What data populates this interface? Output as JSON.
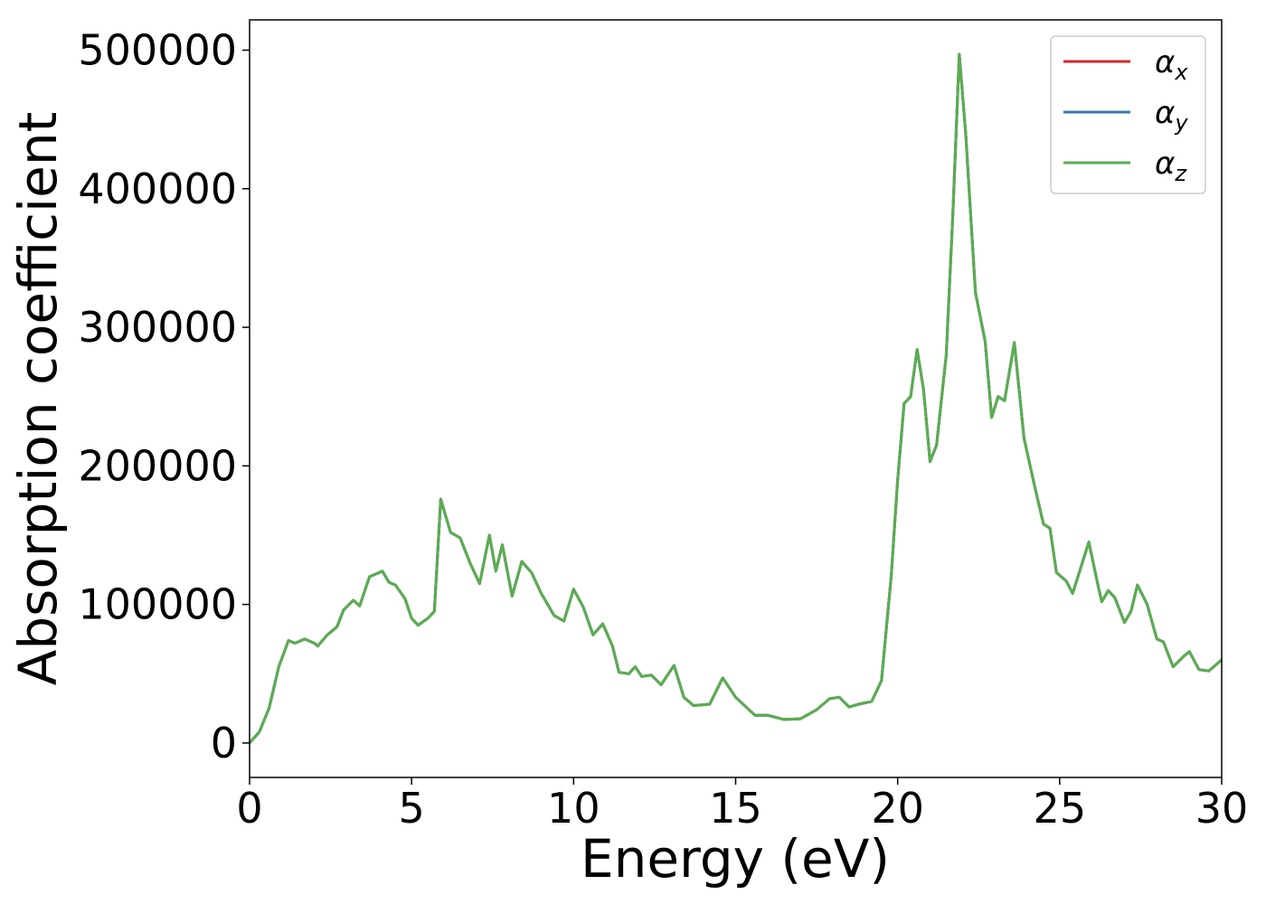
{
  "chart_data": {
    "type": "line",
    "xlabel": "Energy (eV)",
    "ylabel": "Absorption coefficient",
    "x": [
      0,
      0.3,
      0.6,
      0.9,
      1.2,
      1.4,
      1.7,
      2.0,
      2.1,
      2.4,
      2.7,
      2.9,
      3.2,
      3.4,
      3.7,
      3.9,
      4.1,
      4.3,
      4.5,
      4.8,
      5.0,
      5.2,
      5.5,
      5.7,
      5.9,
      6.2,
      6.5,
      6.8,
      7.1,
      7.4,
      7.6,
      7.8,
      8.1,
      8.4,
      8.7,
      9.0,
      9.4,
      9.7,
      10.0,
      10.3,
      10.6,
      10.9,
      11.2,
      11.4,
      11.7,
      11.9,
      12.1,
      12.4,
      12.7,
      13.1,
      13.4,
      13.7,
      14.2,
      14.6,
      15.0,
      15.6,
      16.0,
      16.5,
      17.0,
      17.5,
      17.9,
      18.2,
      18.5,
      18.8,
      19.2,
      19.5,
      19.8,
      20.0,
      20.2,
      20.4,
      20.6,
      20.8,
      21.0,
      21.2,
      21.5,
      21.7,
      21.9,
      22.1,
      22.4,
      22.7,
      22.9,
      23.1,
      23.3,
      23.6,
      23.9,
      24.2,
      24.5,
      24.7,
      24.9,
      25.2,
      25.4,
      25.9,
      26.2,
      26.3,
      26.5,
      26.7,
      27.0,
      27.2,
      27.4,
      27.7,
      28.0,
      28.2,
      28.5,
      28.8,
      29.0,
      29.3,
      29.6,
      30.0
    ],
    "series": [
      {
        "name": "αx",
        "color": "#d62728",
        "values": [
          0,
          8000,
          25000,
          55000,
          74000,
          72000,
          75000,
          72000,
          70000,
          78000,
          84000,
          96000,
          103000,
          99000,
          120000,
          122000,
          124000,
          116000,
          114000,
          104000,
          90000,
          85000,
          90000,
          95000,
          176000,
          152000,
          148000,
          130000,
          115000,
          150000,
          124000,
          143000,
          106000,
          131000,
          123000,
          108000,
          92000,
          88000,
          111000,
          98000,
          78000,
          86000,
          70000,
          51000,
          50000,
          55000,
          48000,
          49000,
          42000,
          56000,
          33000,
          27000,
          28000,
          47000,
          33000,
          20000,
          20000,
          17000,
          17500,
          24000,
          32000,
          33000,
          26000,
          28000,
          30000,
          45000,
          120000,
          190000,
          245000,
          250000,
          284000,
          255000,
          203000,
          215000,
          280000,
          380000,
          497000,
          440000,
          325000,
          290000,
          235000,
          250000,
          247000,
          289000,
          220000,
          188000,
          158000,
          155000,
          123000,
          117000,
          108000,
          145000,
          112000,
          102000,
          110000,
          105000,
          87000,
          95000,
          114000,
          100000,
          75000,
          73000,
          55000,
          62000,
          66000,
          53000,
          52000,
          60000
        ]
      },
      {
        "name": "αy",
        "color": "#3a78b0",
        "values": [
          0,
          8000,
          25000,
          55000,
          74000,
          72000,
          75000,
          72000,
          70000,
          78000,
          84000,
          96000,
          103000,
          99000,
          120000,
          122000,
          124000,
          116000,
          114000,
          104000,
          90000,
          85000,
          90000,
          95000,
          176000,
          152000,
          148000,
          130000,
          115000,
          150000,
          124000,
          143000,
          106000,
          131000,
          123000,
          108000,
          92000,
          88000,
          111000,
          98000,
          78000,
          86000,
          70000,
          51000,
          50000,
          55000,
          48000,
          49000,
          42000,
          56000,
          33000,
          27000,
          28000,
          47000,
          33000,
          20000,
          20000,
          17000,
          17500,
          24000,
          32000,
          33000,
          26000,
          28000,
          30000,
          45000,
          120000,
          190000,
          245000,
          250000,
          284000,
          255000,
          203000,
          215000,
          280000,
          380000,
          497000,
          440000,
          325000,
          290000,
          235000,
          250000,
          247000,
          289000,
          220000,
          188000,
          158000,
          155000,
          123000,
          117000,
          108000,
          145000,
          112000,
          102000,
          110000,
          105000,
          87000,
          95000,
          114000,
          100000,
          75000,
          73000,
          55000,
          62000,
          66000,
          53000,
          52000,
          60000
        ]
      },
      {
        "name": "αz",
        "color": "#5aad50",
        "values": [
          0,
          8000,
          25000,
          55000,
          74000,
          72000,
          75000,
          72000,
          70000,
          78000,
          84000,
          96000,
          103000,
          99000,
          120000,
          122000,
          124000,
          116000,
          114000,
          104000,
          90000,
          85000,
          90000,
          95000,
          176000,
          152000,
          148000,
          130000,
          115000,
          150000,
          124000,
          143000,
          106000,
          131000,
          123000,
          108000,
          92000,
          88000,
          111000,
          98000,
          78000,
          86000,
          70000,
          51000,
          50000,
          55000,
          48000,
          49000,
          42000,
          56000,
          33000,
          27000,
          28000,
          47000,
          33000,
          20000,
          20000,
          17000,
          17500,
          24000,
          32000,
          33000,
          26000,
          28000,
          30000,
          45000,
          120000,
          190000,
          245000,
          250000,
          284000,
          255000,
          203000,
          215000,
          280000,
          380000,
          497000,
          440000,
          325000,
          290000,
          235000,
          250000,
          247000,
          289000,
          220000,
          188000,
          158000,
          155000,
          123000,
          117000,
          108000,
          145000,
          112000,
          102000,
          110000,
          105000,
          87000,
          95000,
          114000,
          100000,
          75000,
          73000,
          55000,
          62000,
          66000,
          53000,
          52000,
          60000
        ]
      }
    ],
    "xlim": [
      0,
      30
    ],
    "xticks": [
      0,
      5,
      10,
      15,
      20,
      25,
      30
    ],
    "ylim": [
      -24850,
      521850
    ],
    "yticks": [
      0,
      100000,
      200000,
      300000,
      400000,
      500000
    ],
    "legend": "upper right"
  }
}
